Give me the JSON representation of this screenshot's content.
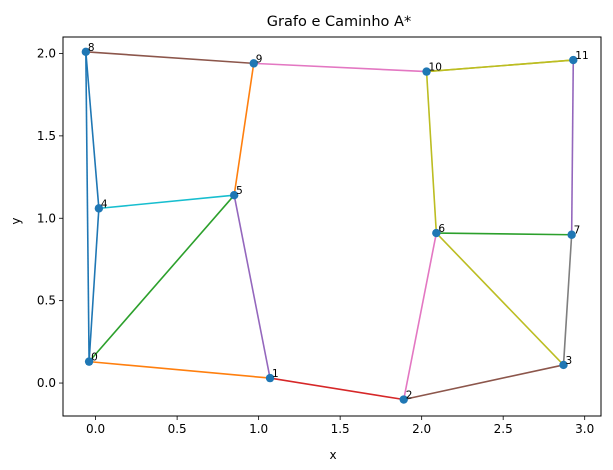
{
  "chart_data": {
    "type": "scatter",
    "title": "Grafo e Caminho A*",
    "xlabel": "x",
    "ylabel": "y",
    "xlim": [
      -0.2,
      3.1
    ],
    "ylim": [
      -0.2,
      2.1
    ],
    "xticks": [
      0.0,
      0.5,
      1.0,
      1.5,
      2.0,
      2.5,
      3.0
    ],
    "xtick_labels": [
      "0.0",
      "0.5",
      "1.0",
      "1.5",
      "2.0",
      "2.5",
      "3.0"
    ],
    "yticks": [
      0.0,
      0.5,
      1.0,
      1.5,
      2.0
    ],
    "ytick_labels": [
      "0.0",
      "0.5",
      "1.0",
      "1.5",
      "2.0"
    ],
    "node_color": "#1f77b4",
    "nodes": [
      {
        "label": "0",
        "x": -0.04,
        "y": 0.13
      },
      {
        "label": "1",
        "x": 1.07,
        "y": 0.03
      },
      {
        "label": "2",
        "x": 1.89,
        "y": -0.1
      },
      {
        "label": "3",
        "x": 2.87,
        "y": 0.11
      },
      {
        "label": "4",
        "x": 0.02,
        "y": 1.06
      },
      {
        "label": "5",
        "x": 0.85,
        "y": 1.14
      },
      {
        "label": "6",
        "x": 2.09,
        "y": 0.91
      },
      {
        "label": "7",
        "x": 2.92,
        "y": 0.9
      },
      {
        "label": "8",
        "x": -0.06,
        "y": 2.01
      },
      {
        "label": "9",
        "x": 0.97,
        "y": 1.94
      },
      {
        "label": "10",
        "x": 2.03,
        "y": 1.89
      },
      {
        "label": "11",
        "x": 2.93,
        "y": 1.96
      }
    ],
    "edges": [
      {
        "from": 0,
        "to": 4,
        "color": "#1f77b4"
      },
      {
        "from": 0,
        "to": 1,
        "color": "#ff7f0e"
      },
      {
        "from": 0,
        "to": 5,
        "color": "#2ca02c"
      },
      {
        "from": 1,
        "to": 2,
        "color": "#d62728"
      },
      {
        "from": 1,
        "to": 5,
        "color": "#9467bd"
      },
      {
        "from": 2,
        "to": 3,
        "color": "#8c564b"
      },
      {
        "from": 2,
        "to": 6,
        "color": "#e377c2"
      },
      {
        "from": 3,
        "to": 7,
        "color": "#7f7f7f"
      },
      {
        "from": 3,
        "to": 6,
        "color": "#bcbd22"
      },
      {
        "from": 4,
        "to": 5,
        "color": "#17becf"
      },
      {
        "from": 4,
        "to": 8,
        "color": "#1f77b4"
      },
      {
        "from": 5,
        "to": 9,
        "color": "#ff7f0e"
      },
      {
        "from": 6,
        "to": 7,
        "color": "#2ca02c"
      },
      {
        "from": 7,
        "to": 11,
        "color": "#9467bd"
      },
      {
        "from": 8,
        "to": 9,
        "color": "#8c564b"
      },
      {
        "from": 9,
        "to": 10,
        "color": "#e377c2"
      },
      {
        "from": 6,
        "to": 10,
        "color": "#bcbd22"
      },
      {
        "from": 10,
        "to": 11,
        "color": "#bcbd22"
      },
      {
        "from": 8,
        "to": 0,
        "color": "#1f77b4"
      }
    ],
    "path": [
      8,
      4,
      0,
      5,
      9,
      10,
      11
    ],
    "path_color": "#bcbd22",
    "grid": false
  }
}
